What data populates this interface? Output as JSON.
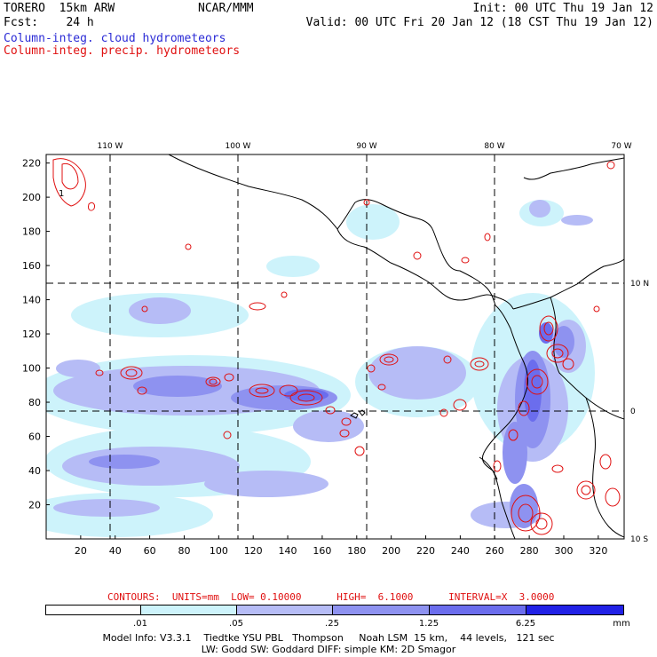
{
  "header": {
    "model": "TORERO  15km ARW",
    "forecast": "Fcst:    24 h",
    "org": "NCAR/MMM",
    "init": "Init: 00 UTC Thu 19 Jan 12",
    "valid": "Valid: 00 UTC Fri 20 Jan 12 (18 CST Thu 19 Jan 12)",
    "field1": "Column-integ. cloud hydrometeors",
    "field2": "Column-integ. precip. hydrometeors"
  },
  "colors": {
    "cloud_text": "#2b2bd6",
    "precip_text": "#e01010",
    "light": "#cdf3fb",
    "pale": "#b6bcf6",
    "mid": "#8e92f0",
    "deep": "#6b6ded",
    "deepest": "#2121e6"
  },
  "map": {
    "lon_labels": [
      "110 W",
      "100 W",
      "90 W",
      "80 W",
      "70 W"
    ],
    "lat_labels": [
      "10 N",
      "0",
      "10 S"
    ],
    "x_ticks": [
      "20",
      "40",
      "60",
      "80",
      "100",
      "120",
      "140",
      "160",
      "180",
      "200",
      "220",
      "240",
      "260",
      "280",
      "300",
      "320"
    ],
    "y_ticks": [
      "20",
      "40",
      "60",
      "80",
      "100",
      "120",
      "140",
      "160",
      "180",
      "200",
      "220"
    ],
    "grid_x_range": [
      0,
      335
    ],
    "grid_y_range": [
      0,
      225
    ],
    "contour_label": "1"
  },
  "contour_caption": {
    "text": "CONTOURS:  UNITS=mm  LOW= 0.10000      HIGH=  6.1000      INTERVAL=X  3.0000"
  },
  "color_bar": {
    "labels": [
      ".01",
      ".05",
      ".25",
      "1.25",
      "6.25"
    ],
    "unit": "mm"
  },
  "footer": {
    "line1": "Model Info: V3.3.1    Tiedtke YSU PBL   Thompson     Noah LSM  15 km,    44 levels,   121 sec",
    "line2": "LW: Godd SW: Goddard DIFF: simple KM: 2D Smagor"
  }
}
